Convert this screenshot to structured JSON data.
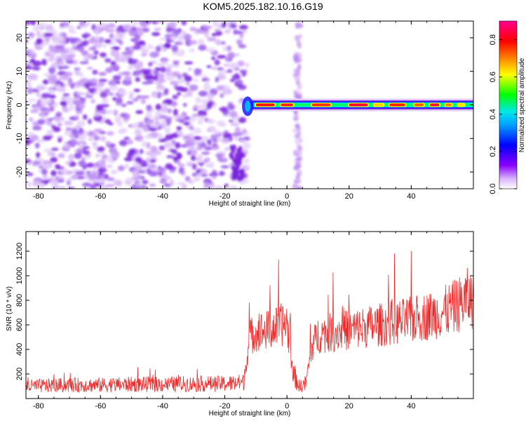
{
  "title": "KOM5.2025.182.10.16.G19",
  "chart_data": [
    {
      "type": "heatmap",
      "xlabel": "Height of straight line (km)",
      "ylabel": "Frequency (Hz)",
      "xlim": [
        -84,
        60
      ],
      "ylim": [
        -25,
        25
      ],
      "x_ticks": [
        "-80",
        "-60",
        "-40",
        "-20",
        "0",
        "20",
        "40"
      ],
      "y_ticks": [
        "20",
        "10",
        "0",
        "-10",
        "-20"
      ],
      "colorbar": {
        "label": "Normalized spectral amplitude",
        "range": [
          0.0,
          0.9
        ],
        "ticks": [
          "0.0",
          "0.2",
          "0.4",
          "0.6",
          "0.8"
        ],
        "colormap": [
          "#ffffff",
          "#8a00ff",
          "#0000ff",
          "#00e0ff",
          "#00ff00",
          "#ffff00",
          "#ff8000",
          "#ff0000",
          "#ff0090"
        ]
      },
      "features": {
        "noise_region_x": [
          -84,
          -14
        ],
        "noise_color": "#8a2be2",
        "signal_band_x": [
          -14,
          60
        ],
        "signal_band_frequency": 0,
        "vertical_streak_x": 4
      }
    },
    {
      "type": "line",
      "xlabel": "Height of straight line (km)",
      "ylabel": "SNR (10 * v/v)",
      "xlim": [
        -84,
        60
      ],
      "ylim": [
        0,
        1360
      ],
      "x_ticks": [
        "-80",
        "-60",
        "-40",
        "-20",
        "0",
        "20",
        "40"
      ],
      "y_ticks": [
        "200",
        "400",
        "600",
        "800",
        "1000",
        "1200"
      ],
      "series": [
        {
          "color": "#ee2c2c",
          "x": [
            -84,
            -70,
            -60,
            -50,
            -40,
            -30,
            -20,
            -14,
            -12,
            -10,
            -5,
            0,
            2,
            4,
            6,
            8,
            10,
            20,
            30,
            40,
            50,
            55,
            58,
            60
          ],
          "y": [
            100,
            110,
            110,
            115,
            115,
            120,
            120,
            130,
            500,
            540,
            560,
            620,
            200,
            100,
            120,
            420,
            520,
            560,
            600,
            640,
            700,
            760,
            820,
            800
          ]
        }
      ]
    }
  ]
}
